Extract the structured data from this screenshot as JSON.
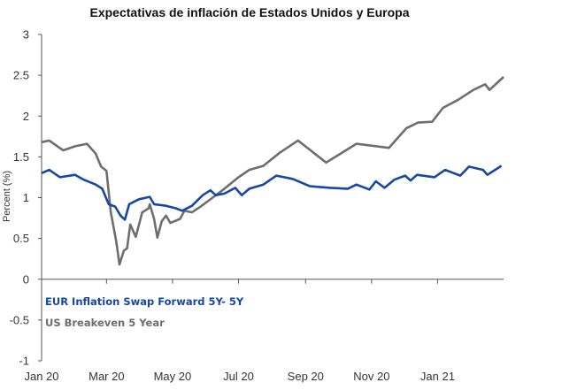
{
  "chart_data": {
    "type": "line",
    "title": "Expectativas de inflación de Estados Unidos y Europa",
    "xlabel": "",
    "ylabel": "Percent (%)",
    "ylim": [
      -1,
      3
    ],
    "xlim": [
      "2020-01-01",
      "2021-03-03"
    ],
    "grid": false,
    "legend_position": "bottom-left inside",
    "y_ticks": [
      "3",
      "2.5",
      "2",
      "1.5",
      "1",
      "0.5",
      "0",
      "-0.5",
      "-1"
    ],
    "x_ticks": [
      {
        "date": "2020-01-01",
        "label": "Jan 20"
      },
      {
        "date": "2020-03-01",
        "label": "Mar 20"
      },
      {
        "date": "2020-05-01",
        "label": "May 20"
      },
      {
        "date": "2020-07-01",
        "label": "Jul 20"
      },
      {
        "date": "2020-09-01",
        "label": "Sep 20"
      },
      {
        "date": "2020-11-01",
        "label": "Nov 20"
      },
      {
        "date": "2021-01-01",
        "label": "Jan 21"
      }
    ],
    "series": [
      {
        "name": "EUR Inflation Swap Forward 5Y- 5Y",
        "color": "#1747a6",
        "points": [
          [
            "2020-01-01",
            1.3
          ],
          [
            "2020-01-08",
            1.34
          ],
          [
            "2020-01-18",
            1.25
          ],
          [
            "2020-02-01",
            1.28
          ],
          [
            "2020-02-09",
            1.22
          ],
          [
            "2020-02-20",
            1.16
          ],
          [
            "2020-02-26",
            1.11
          ],
          [
            "2020-03-03",
            0.92
          ],
          [
            "2020-03-09",
            0.89
          ],
          [
            "2020-03-14",
            0.78
          ],
          [
            "2020-03-18",
            0.73
          ],
          [
            "2020-03-22",
            0.92
          ],
          [
            "2020-03-31",
            0.98
          ],
          [
            "2020-04-10",
            1.01
          ],
          [
            "2020-04-14",
            0.92
          ],
          [
            "2020-04-25",
            0.9
          ],
          [
            "2020-05-04",
            0.87
          ],
          [
            "2020-05-10",
            0.84
          ],
          [
            "2020-05-19",
            0.9
          ],
          [
            "2020-05-29",
            1.03
          ],
          [
            "2020-06-05",
            1.09
          ],
          [
            "2020-06-10",
            1.03
          ],
          [
            "2020-06-18",
            1.05
          ],
          [
            "2020-06-28",
            1.12
          ],
          [
            "2020-07-04",
            1.03
          ],
          [
            "2020-07-11",
            1.11
          ],
          [
            "2020-07-24",
            1.16
          ],
          [
            "2020-08-05",
            1.27
          ],
          [
            "2020-08-20",
            1.23
          ],
          [
            "2020-09-05",
            1.14
          ],
          [
            "2020-09-24",
            1.12
          ],
          [
            "2020-10-10",
            1.11
          ],
          [
            "2020-10-18",
            1.16
          ],
          [
            "2020-10-30",
            1.1
          ],
          [
            "2020-11-05",
            1.2
          ],
          [
            "2020-11-13",
            1.12
          ],
          [
            "2020-11-22",
            1.22
          ],
          [
            "2020-12-02",
            1.27
          ],
          [
            "2020-12-07",
            1.21
          ],
          [
            "2020-12-13",
            1.28
          ],
          [
            "2020-12-29",
            1.25
          ],
          [
            "2021-01-08",
            1.34
          ],
          [
            "2021-01-22",
            1.27
          ],
          [
            "2021-01-30",
            1.38
          ],
          [
            "2021-02-12",
            1.34
          ],
          [
            "2021-02-16",
            1.28
          ],
          [
            "2021-03-01",
            1.39
          ]
        ]
      },
      {
        "name": "US Breakeven 5 Year",
        "color": "#6d6e70",
        "points": [
          [
            "2020-01-01",
            1.68
          ],
          [
            "2020-01-08",
            1.7
          ],
          [
            "2020-01-21",
            1.58
          ],
          [
            "2020-02-01",
            1.63
          ],
          [
            "2020-02-12",
            1.66
          ],
          [
            "2020-02-20",
            1.54
          ],
          [
            "2020-02-25",
            1.38
          ],
          [
            "2020-03-01",
            1.33
          ],
          [
            "2020-03-05",
            0.82
          ],
          [
            "2020-03-10",
            0.46
          ],
          [
            "2020-03-13",
            0.18
          ],
          [
            "2020-03-17",
            0.35
          ],
          [
            "2020-03-20",
            0.38
          ],
          [
            "2020-03-23",
            0.67
          ],
          [
            "2020-03-28",
            0.52
          ],
          [
            "2020-04-03",
            0.82
          ],
          [
            "2020-04-09",
            0.87
          ],
          [
            "2020-04-10",
            0.92
          ],
          [
            "2020-04-14",
            0.74
          ],
          [
            "2020-04-17",
            0.51
          ],
          [
            "2020-04-21",
            0.71
          ],
          [
            "2020-04-25",
            0.78
          ],
          [
            "2020-04-29",
            0.69
          ],
          [
            "2020-05-08",
            0.74
          ],
          [
            "2020-05-12",
            0.84
          ],
          [
            "2020-05-19",
            0.82
          ],
          [
            "2020-05-27",
            0.89
          ],
          [
            "2020-06-07",
            1.0
          ],
          [
            "2020-06-18",
            1.11
          ],
          [
            "2020-07-01",
            1.25
          ],
          [
            "2020-07-11",
            1.34
          ],
          [
            "2020-07-24",
            1.39
          ],
          [
            "2020-08-08",
            1.55
          ],
          [
            "2020-08-25",
            1.7
          ],
          [
            "2020-09-20",
            1.43
          ],
          [
            "2020-10-18",
            1.66
          ],
          [
            "2020-11-17",
            1.61
          ],
          [
            "2020-12-03",
            1.85
          ],
          [
            "2020-12-14",
            1.92
          ],
          [
            "2020-12-27",
            1.93
          ],
          [
            "2021-01-06",
            2.1
          ],
          [
            "2021-01-20",
            2.2
          ],
          [
            "2021-02-03",
            2.32
          ],
          [
            "2021-02-14",
            2.39
          ],
          [
            "2021-02-18",
            2.32
          ],
          [
            "2021-03-03",
            2.48
          ]
        ]
      }
    ]
  }
}
